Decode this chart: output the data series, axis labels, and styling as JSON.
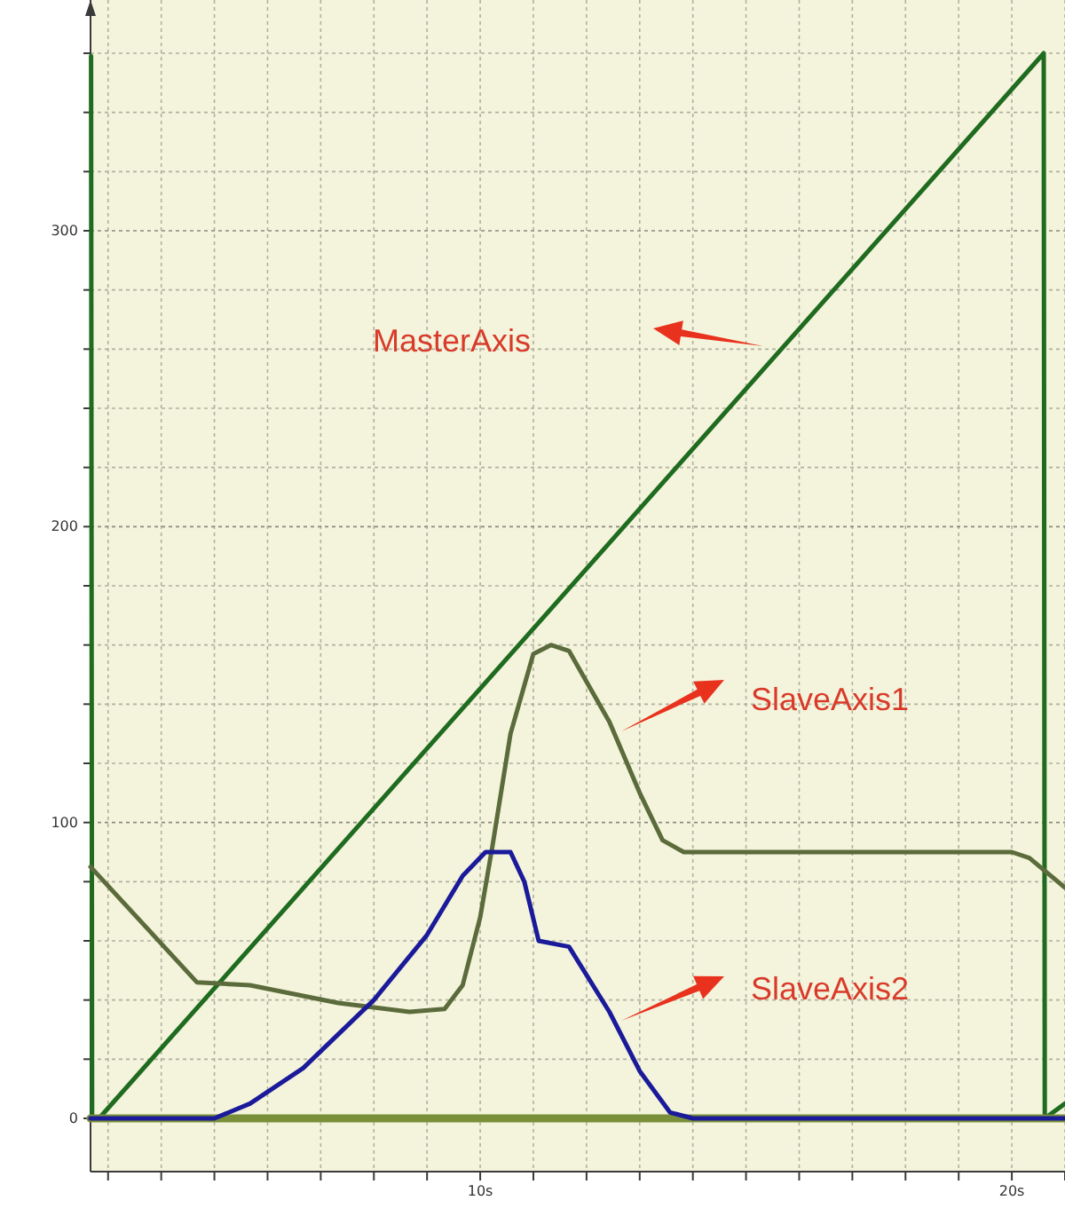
{
  "chart_data": {
    "type": "line",
    "xlim": [
      2.67,
      21
    ],
    "ylim": [
      -18,
      378
    ],
    "xticks": [
      {
        "value": 3,
        "label": null
      },
      {
        "value": 4,
        "label": null
      },
      {
        "value": 5,
        "label": null
      },
      {
        "value": 6,
        "label": null
      },
      {
        "value": 7,
        "label": null
      },
      {
        "value": 8,
        "label": null
      },
      {
        "value": 9,
        "label": null
      },
      {
        "value": 10,
        "label": "10s"
      },
      {
        "value": 11,
        "label": null
      },
      {
        "value": 12,
        "label": null
      },
      {
        "value": 13,
        "label": null
      },
      {
        "value": 14,
        "label": null
      },
      {
        "value": 15,
        "label": null
      },
      {
        "value": 16,
        "label": null
      },
      {
        "value": 17,
        "label": null
      },
      {
        "value": 18,
        "label": null
      },
      {
        "value": 19,
        "label": null
      },
      {
        "value": 20,
        "label": "20s"
      },
      {
        "value": 21,
        "label": null
      }
    ],
    "yticks": [
      0,
      {
        "value": 20,
        "label": null
      },
      {
        "value": 40,
        "label": null
      },
      {
        "value": 60,
        "label": null
      },
      {
        "value": 80,
        "label": null
      },
      100,
      {
        "value": 120,
        "label": null
      },
      {
        "value": 140,
        "label": null
      },
      {
        "value": 160,
        "label": null
      },
      {
        "value": 180,
        "label": null
      },
      200,
      {
        "value": 220,
        "label": null
      },
      {
        "value": 240,
        "label": null
      },
      {
        "value": 260,
        "label": null
      },
      {
        "value": 280,
        "label": null
      },
      300,
      {
        "value": 320,
        "label": null
      },
      {
        "value": 340,
        "label": null
      },
      {
        "value": 360,
        "label": null
      }
    ],
    "grid": true,
    "annotations": [
      "MasterAxis",
      "SlaveAxis1",
      "SlaveAxis2"
    ],
    "series": [
      {
        "color": "#1f6b1f",
        "x": [
          2.68,
          2.7,
          2.83,
          20.6,
          20.62,
          21
        ],
        "values": [
          359,
          0,
          0,
          360,
          0,
          5
        ]
      },
      {
        "name": null,
        "color": "#7a8f3a",
        "x": [
          2.67,
          21
        ],
        "values": [
          0,
          0
        ]
      },
      {
        "color": "#5b6b3b",
        "x": [
          2.67,
          4.67,
          5.67,
          7.33,
          8.67,
          9.33,
          9.67,
          10.0,
          10.23,
          10.57,
          11.0,
          11.33,
          11.67,
          12.43,
          13.0,
          13.43,
          13.83,
          20.0,
          20.33,
          21
        ],
        "values": [
          85,
          46,
          45,
          39,
          36,
          37,
          45,
          68,
          92,
          130,
          157,
          160,
          158,
          134,
          110,
          94,
          90,
          90,
          88,
          78
        ]
      },
      {
        "color": "#1a1a9a",
        "x": [
          2.67,
          5.0,
          5.67,
          6.67,
          8.0,
          9.0,
          9.67,
          10.1,
          10.57,
          10.83,
          11.1,
          11.67,
          12.43,
          13.0,
          13.57,
          14.0,
          21
        ],
        "values": [
          0,
          0,
          5,
          17,
          40,
          62,
          82,
          90,
          90,
          80,
          60,
          58,
          36,
          16,
          2,
          0,
          0
        ]
      }
    ]
  }
}
